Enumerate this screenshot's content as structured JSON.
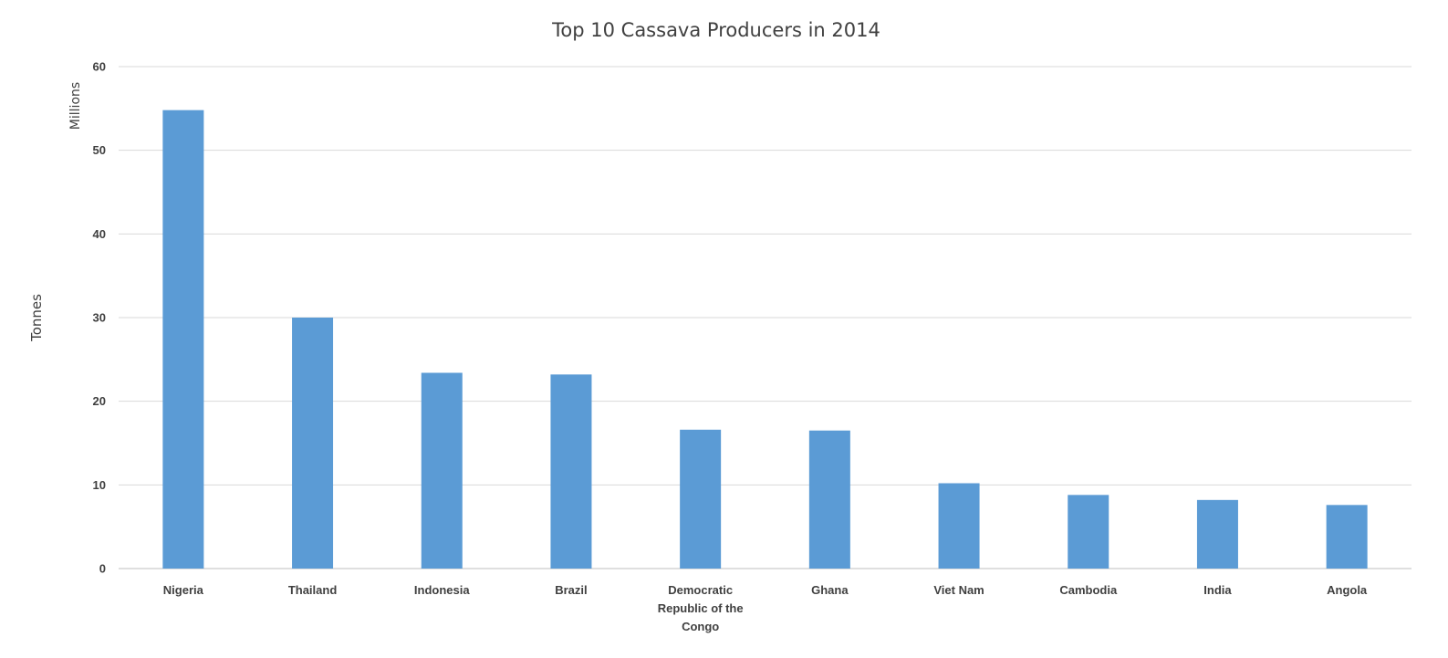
{
  "chart_data": {
    "type": "bar",
    "title": "Top 10 Cassava Producers in 2014",
    "ylabel": "Tonnes",
    "y_units": "Millions",
    "xlabel": "",
    "categories": [
      [
        "Nigeria"
      ],
      [
        "Thailand"
      ],
      [
        "Indonesia"
      ],
      [
        "Brazil"
      ],
      [
        "Democratic",
        "Republic of the",
        "Congo"
      ],
      [
        "Ghana"
      ],
      [
        "Viet Nam"
      ],
      [
        "Cambodia"
      ],
      [
        "India"
      ],
      [
        "Angola"
      ]
    ],
    "values": [
      54.8,
      30.0,
      23.4,
      23.2,
      16.6,
      16.5,
      10.2,
      8.8,
      8.2,
      7.6
    ],
    "ylim": [
      0,
      60
    ],
    "yticks": [
      0,
      10,
      20,
      30,
      40,
      50,
      60
    ],
    "grid": true,
    "legend": "none",
    "bar_color": "#5b9bd5"
  }
}
